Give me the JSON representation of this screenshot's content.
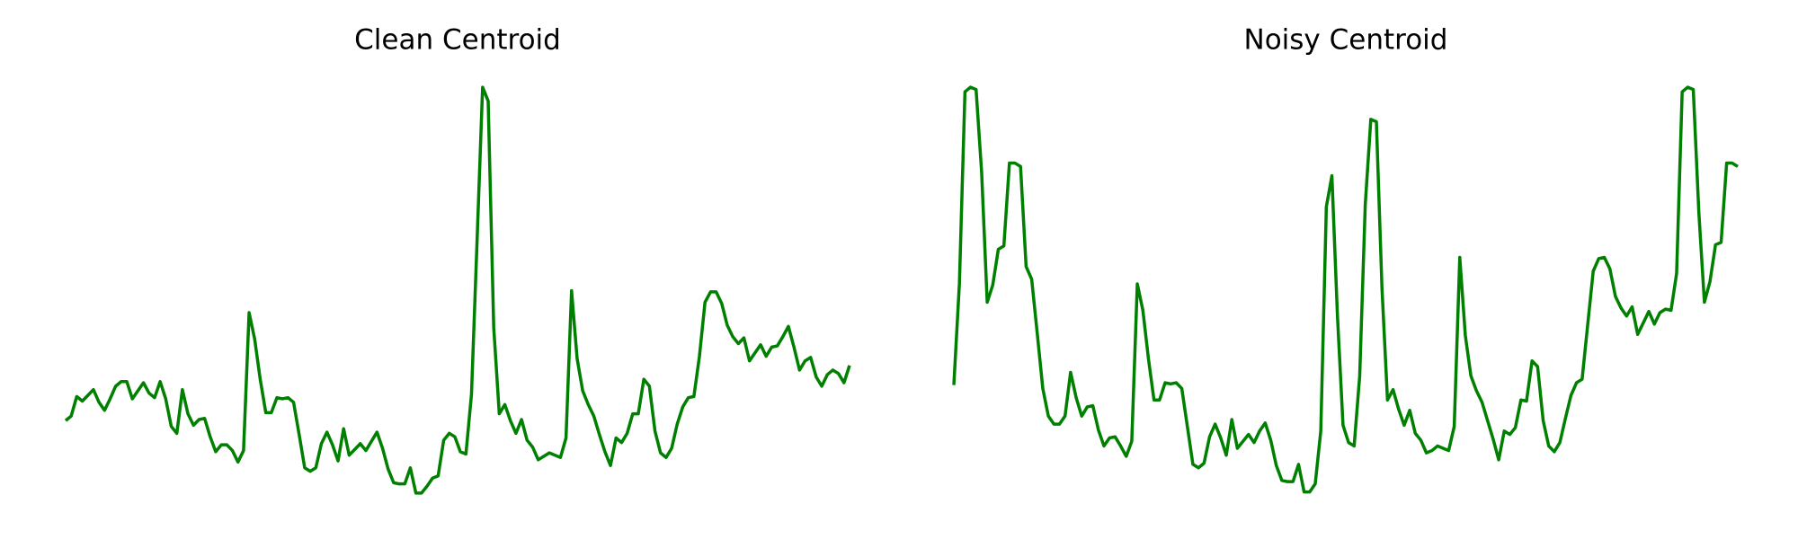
{
  "chart_data": [
    {
      "type": "line",
      "title": "Clean Centroid",
      "color": "#008000",
      "values": [
        74,
        78,
        95,
        91,
        96,
        101,
        90,
        83,
        93,
        104,
        108,
        108,
        93,
        100,
        107,
        98,
        94,
        108,
        93,
        69,
        63,
        101,
        80,
        70,
        75,
        76,
        60,
        47,
        53,
        53,
        48,
        38,
        48,
        168,
        145,
        110,
        81,
        81,
        94,
        93,
        94,
        90,
        62,
        33,
        30,
        33,
        54,
        64,
        53,
        39,
        67,
        44,
        49,
        54,
        48,
        56,
        64,
        50,
        32,
        20,
        19,
        19,
        33,
        11,
        11,
        17,
        24,
        26,
        57,
        63,
        60,
        47,
        45,
        97,
        230,
        364,
        352,
        155,
        80,
        88,
        74,
        63,
        75,
        57,
        51,
        40,
        43,
        46,
        44,
        42,
        59,
        187,
        128,
        100,
        88,
        78,
        62,
        47,
        35,
        59,
        55,
        63,
        80,
        80,
        110,
        104,
        65,
        46,
        42,
        50,
        71,
        86,
        94,
        95,
        130,
        177,
        186,
        186,
        176,
        157,
        147,
        141,
        146,
        126,
        133,
        140,
        130,
        138,
        139,
        147,
        156,
        138,
        118,
        126,
        129,
        112,
        104,
        114,
        118,
        115,
        107,
        122
      ]
    },
    {
      "type": "line",
      "title": "Noisy Centroid",
      "color": "#008000",
      "values": [
        105,
        193,
        360,
        364,
        362,
        290,
        177,
        192,
        223,
        226,
        298,
        298,
        295,
        208,
        197,
        150,
        102,
        78,
        71,
        71,
        78,
        116,
        94,
        78,
        86,
        87,
        66,
        52,
        59,
        60,
        52,
        43,
        56,
        193,
        170,
        128,
        92,
        92,
        107,
        106,
        107,
        102,
        69,
        36,
        33,
        37,
        60,
        71,
        59,
        44,
        75,
        50,
        56,
        62,
        55,
        65,
        72,
        57,
        35,
        22,
        21,
        21,
        36,
        12,
        12,
        19,
        65,
        260,
        287,
        165,
        70,
        55,
        52,
        113,
        262,
        336,
        334,
        190,
        92,
        101,
        84,
        70,
        83,
        63,
        57,
        46,
        48,
        52,
        50,
        48,
        69,
        216,
        148,
        113,
        100,
        90,
        74,
        58,
        40,
        65,
        62,
        68,
        92,
        91,
        126,
        121,
        74,
        52,
        47,
        55,
        76,
        96,
        107,
        110,
        157,
        204,
        215,
        216,
        206,
        182,
        172,
        165,
        173,
        149,
        159,
        169,
        158,
        168,
        171,
        170,
        202,
        360,
        364,
        362,
        255,
        177,
        195,
        227,
        229,
        298,
        298,
        295
      ]
    }
  ]
}
